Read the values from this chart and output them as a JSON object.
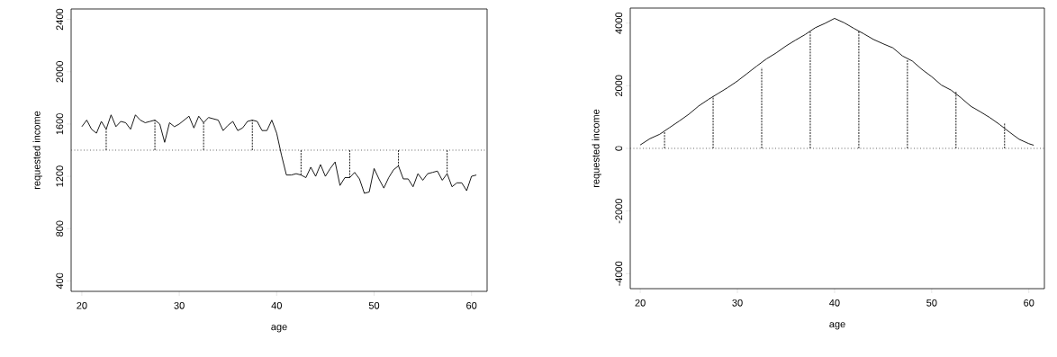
{
  "chart_data": [
    {
      "type": "line",
      "xlabel": "age",
      "ylabel": "requested income",
      "xlim": [
        18.9,
        61.6
      ],
      "ylim": [
        320,
        2480
      ],
      "xticks": [
        20,
        30,
        40,
        50,
        60
      ],
      "yticks": [
        400,
        800,
        1200,
        1600,
        2000,
        2400
      ],
      "grid": false,
      "series": [
        {
          "color": "#000000",
          "x": [
            20,
            20.5,
            21,
            21.5,
            22,
            22.5,
            23,
            23.5,
            24,
            24.5,
            25,
            25.5,
            26,
            26.5,
            27,
            27.5,
            28,
            28.5,
            29,
            29.5,
            30,
            30.5,
            31,
            31.5,
            32,
            32.5,
            33,
            33.5,
            34,
            34.5,
            35,
            35.5,
            36,
            36.5,
            37,
            37.5,
            38,
            38.5,
            39,
            39.5,
            40,
            40.5,
            41,
            41.5,
            42,
            42.5,
            43,
            43.5,
            44,
            44.5,
            45,
            45.5,
            46,
            46.5,
            47,
            47.5,
            48,
            48.5,
            49,
            49.5,
            50,
            50.5,
            51,
            51.5,
            52,
            52.5,
            53,
            53.5,
            54,
            54.5,
            55,
            55.5,
            56,
            56.5,
            57,
            57.5,
            58,
            58.5,
            59,
            59.5,
            60,
            60.5
          ],
          "values": [
            1580,
            1630,
            1560,
            1530,
            1620,
            1560,
            1670,
            1580,
            1620,
            1610,
            1560,
            1670,
            1630,
            1610,
            1620,
            1630,
            1600,
            1460,
            1610,
            1580,
            1600,
            1630,
            1660,
            1570,
            1660,
            1610,
            1650,
            1640,
            1630,
            1550,
            1590,
            1620,
            1550,
            1570,
            1620,
            1630,
            1620,
            1550,
            1550,
            1630,
            1530,
            1360,
            1210,
            1210,
            1220,
            1210,
            1190,
            1270,
            1200,
            1290,
            1200,
            1260,
            1310,
            1130,
            1190,
            1190,
            1230,
            1180,
            1070,
            1080,
            1260,
            1180,
            1110,
            1190,
            1250,
            1280,
            1180,
            1180,
            1120,
            1220,
            1170,
            1220,
            1230,
            1240,
            1170,
            1220,
            1120,
            1150,
            1150,
            1090,
            1200,
            1210
          ]
        },
        {
          "type": "line",
          "line_style": "dashed",
          "color": "#000000",
          "x": [
            22.5,
            22.5
          ],
          "values": [
            1400,
            1560
          ]
        },
        {
          "type": "line",
          "line_style": "dashed",
          "color": "#000000",
          "x": [
            27.5,
            27.5
          ],
          "values": [
            1400,
            1630
          ]
        },
        {
          "type": "line",
          "line_style": "dashed",
          "color": "#000000",
          "x": [
            32.5,
            32.5
          ],
          "values": [
            1400,
            1610
          ]
        },
        {
          "type": "line",
          "line_style": "dashed",
          "color": "#000000",
          "x": [
            37.5,
            37.5
          ],
          "values": [
            1400,
            1630
          ]
        },
        {
          "type": "line",
          "line_style": "dashed",
          "color": "#000000",
          "x": [
            42.5,
            42.5
          ],
          "values": [
            1400,
            1210
          ]
        },
        {
          "type": "line",
          "line_style": "dashed",
          "color": "#000000",
          "x": [
            47.5,
            47.5
          ],
          "values": [
            1400,
            1190
          ]
        },
        {
          "type": "line",
          "line_style": "dashed",
          "color": "#000000",
          "x": [
            52.5,
            52.5
          ],
          "values": [
            1400,
            1280
          ]
        },
        {
          "type": "line",
          "line_style": "dashed",
          "color": "#000000",
          "x": [
            57.5,
            57.5
          ],
          "values": [
            1400,
            1220
          ]
        }
      ],
      "ref_lines": [
        {
          "axis": "y",
          "value": 1400,
          "color": "#555555",
          "line_style": "dotted"
        }
      ]
    },
    {
      "type": "line",
      "xlabel": "age",
      "ylabel": "requested income",
      "xlim": [
        18.97,
        61.6
      ],
      "ylim": [
        -4480,
        4480
      ],
      "xticks": [
        20,
        30,
        40,
        50,
        60
      ],
      "yticks": [
        -4000,
        -2000,
        0,
        2000,
        4000
      ],
      "grid": false,
      "series": [
        {
          "color": "#000000",
          "x": [
            20,
            21,
            22,
            23,
            24,
            25,
            26,
            27,
            28,
            29,
            30,
            31,
            32,
            33,
            34,
            35,
            36,
            37,
            38,
            39,
            40,
            41,
            42,
            43,
            44,
            45,
            46,
            47,
            48,
            49,
            50,
            51,
            52,
            53,
            54,
            55,
            56,
            57,
            58,
            59,
            60,
            60.5
          ],
          "values": [
            110,
            310,
            450,
            660,
            870,
            1090,
            1350,
            1560,
            1750,
            1940,
            2150,
            2390,
            2630,
            2860,
            3050,
            3270,
            3460,
            3640,
            3850,
            3990,
            4150,
            4010,
            3830,
            3660,
            3480,
            3340,
            3210,
            2950,
            2790,
            2520,
            2290,
            2020,
            1860,
            1620,
            1350,
            1170,
            980,
            760,
            520,
            290,
            150,
            100
          ]
        },
        {
          "type": "line",
          "line_style": "dashed",
          "color": "#000000",
          "x": [
            22.5,
            22.5
          ],
          "values": [
            0,
            520
          ]
        },
        {
          "type": "line",
          "line_style": "dashed",
          "color": "#000000",
          "x": [
            27.5,
            27.5
          ],
          "values": [
            0,
            1670
          ]
        },
        {
          "type": "line",
          "line_style": "dashed",
          "color": "#000000",
          "x": [
            32.5,
            32.5
          ],
          "values": [
            0,
            2580
          ]
        },
        {
          "type": "line",
          "line_style": "dashed",
          "color": "#000000",
          "x": [
            37.5,
            37.5
          ],
          "values": [
            0,
            3720
          ]
        },
        {
          "type": "line",
          "line_style": "dashed",
          "color": "#000000",
          "x": [
            42.5,
            42.5
          ],
          "values": [
            0,
            3750
          ]
        },
        {
          "type": "line",
          "line_style": "dashed",
          "color": "#000000",
          "x": [
            47.5,
            47.5
          ],
          "values": [
            0,
            2840
          ]
        },
        {
          "type": "line",
          "line_style": "dashed",
          "color": "#000000",
          "x": [
            52.5,
            52.5
          ],
          "values": [
            0,
            1830
          ]
        },
        {
          "type": "line",
          "line_style": "dashed",
          "color": "#000000",
          "x": [
            57.5,
            57.5
          ],
          "values": [
            0,
            800
          ]
        }
      ],
      "ref_lines": [
        {
          "axis": "y",
          "value": 0,
          "color": "#555555",
          "line_style": "dotted"
        }
      ]
    }
  ]
}
